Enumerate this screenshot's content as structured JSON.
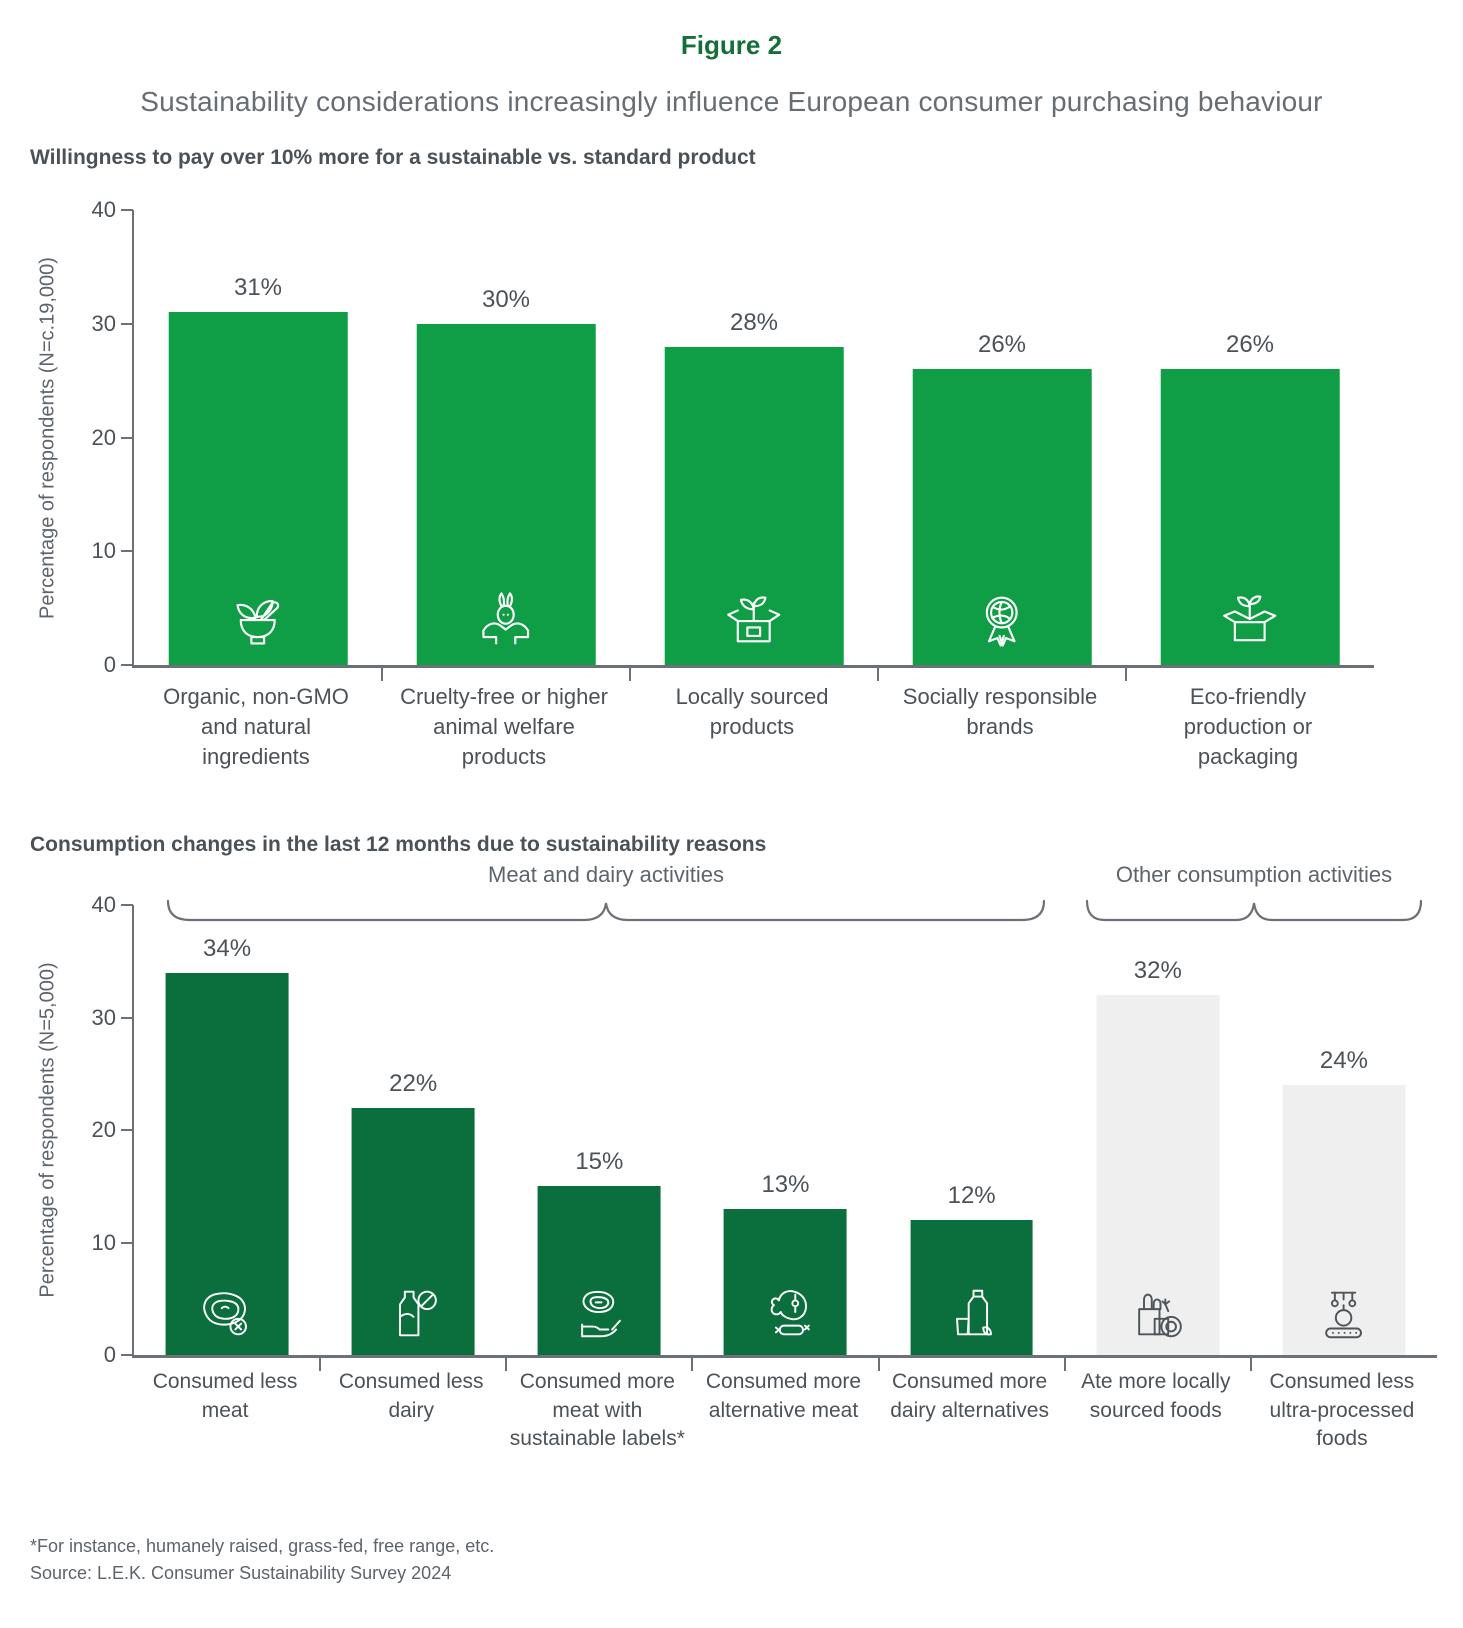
{
  "figure": {
    "label": "Figure 2",
    "title": "Sustainability considerations increasingly influence European consumer purchasing behaviour"
  },
  "colors": {
    "figure_green": "#156f3a",
    "bright_green_bar": "#0f9e45",
    "dark_green_bar": "#0b6e3d",
    "light_gray_bar": "#efefef",
    "axis_gray": "#6b7177",
    "text_dark": "#4b5258",
    "text_gray": "#5d646b"
  },
  "chart_data": [
    {
      "type": "bar",
      "title": "Willingness to pay over 10% more for a sustainable vs. standard product",
      "ylabel": "Percentage of respondents (N=c.19,000)",
      "ylim": [
        0,
        40
      ],
      "yticks": [
        "40",
        "30",
        "20",
        "10",
        "0"
      ],
      "grid": false,
      "categories": [
        "Organic, non-GMO and natural ingredients",
        "Cruelty-free or higher animal welfare products",
        "Locally sourced products",
        "Socially responsible brands",
        "Eco-friendly production or packaging"
      ],
      "values": [
        31,
        30,
        28,
        26,
        26
      ],
      "value_labels": [
        "31%",
        "30%",
        "28%",
        "26%",
        "26%"
      ],
      "bar_color": "#0f9e45",
      "icons": [
        "mortar-and-pestle-herbs-icon",
        "rabbit-in-hands-icon",
        "box-with-plant-icon",
        "globe-award-ribbon-icon",
        "eco-box-sprout-icon"
      ]
    },
    {
      "type": "bar",
      "title": "Consumption changes in the last 12 months due to sustainability reasons",
      "ylabel": "Percentage of respondents (N=5,000)",
      "ylim": [
        0,
        40
      ],
      "yticks": [
        "40",
        "30",
        "20",
        "10",
        "0"
      ],
      "grid": false,
      "group_labels": [
        "Meat and dairy activities",
        "Other consumption activities"
      ],
      "categories": [
        "Consumed less meat",
        "Consumed less dairy",
        "Consumed more meat with sustainable labels*",
        "Consumed more alternative meat",
        "Consumed more dairy alternatives",
        "Ate more locally sourced foods",
        "Consumed less ultra-processed foods"
      ],
      "values": [
        34,
        22,
        15,
        13,
        12,
        32,
        24
      ],
      "value_labels": [
        "34%",
        "22%",
        "15%",
        "13%",
        "12%",
        "32%",
        "24%"
      ],
      "bar_colors": [
        "#0b6e3d",
        "#0b6e3d",
        "#0b6e3d",
        "#0b6e3d",
        "#0b6e3d",
        "#efefef",
        "#efefef"
      ],
      "icons": [
        "steak-crossed-out-icon",
        "milk-bottle-prohibited-icon",
        "steak-in-hand-icon",
        "ham-and-sausage-icon",
        "dairy-alternative-bottle-icon",
        "grocery-bag-local-icon",
        "processed-food-machine-icon"
      ]
    }
  ],
  "footnotes": [
    "*For instance, humanely raised, grass-fed, free range, etc.",
    "Source: L.E.K. Consumer Sustainability Survey 2024"
  ]
}
